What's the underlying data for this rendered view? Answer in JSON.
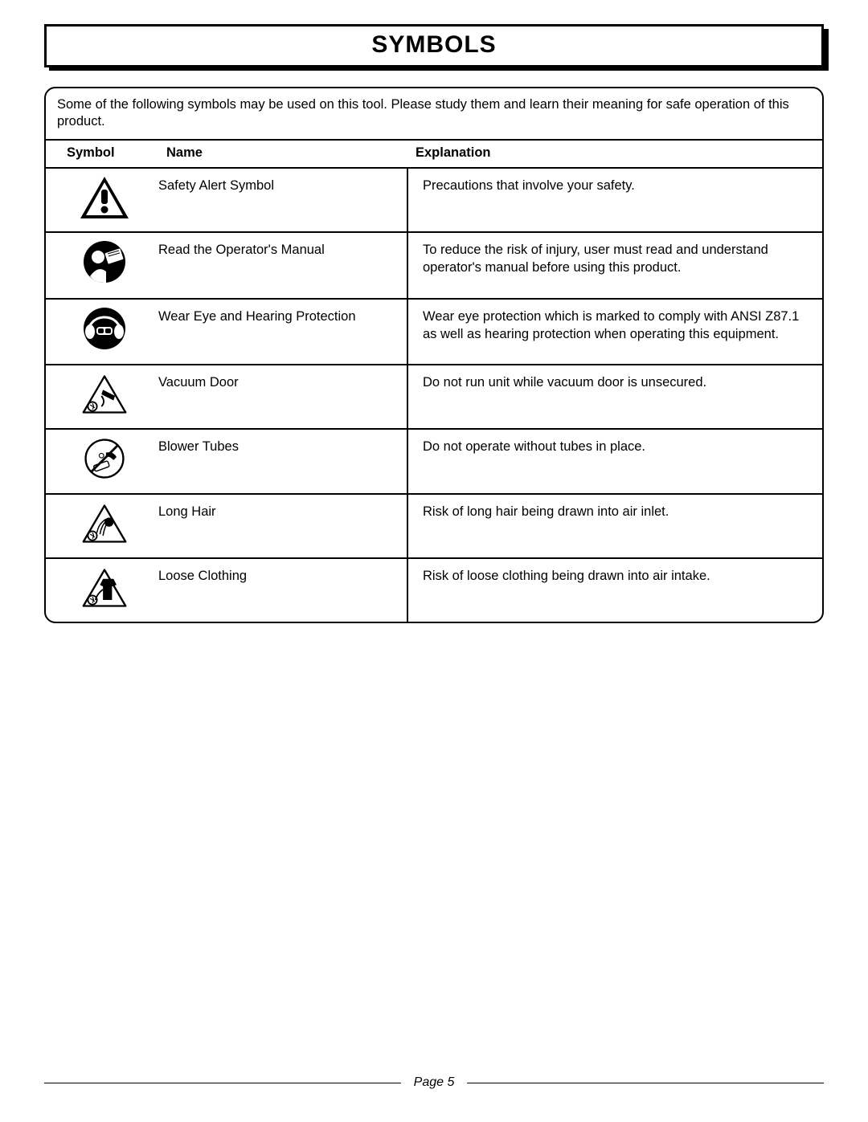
{
  "title": "SYMBOLS",
  "intro": "Some of the following symbols may be used on this tool. Please study them and learn their meaning for safe operation of this product.",
  "headers": {
    "symbol": "Symbol",
    "name": "Name",
    "explanation": "Explanation"
  },
  "rows": [
    {
      "icon": "safety-alert",
      "name": "Safety Alert Symbol",
      "explanation": "Precautions that involve your safety."
    },
    {
      "icon": "read-manual",
      "name": "Read the Operator's Manual",
      "explanation": "To reduce the risk of injury, user must read and understand operator's manual before using this product."
    },
    {
      "icon": "eye-ear-protection",
      "name": "Wear Eye and Hearing Protection",
      "explanation": "Wear eye protection which is marked to comply with ANSI Z87.1 as well as hearing protection when operating this equipment."
    },
    {
      "icon": "vacuum-door",
      "name": "Vacuum Door",
      "explanation": "Do not run unit while vacuum door is unsecured."
    },
    {
      "icon": "blower-tubes",
      "name": "Blower Tubes",
      "explanation": "Do not operate without tubes in place."
    },
    {
      "icon": "long-hair",
      "name": "Long Hair",
      "explanation": "Risk of long hair being drawn into air inlet."
    },
    {
      "icon": "loose-clothing",
      "name": "Loose Clothing",
      "explanation": "Risk of loose clothing being drawn into air intake."
    }
  ],
  "footer": "Page 5",
  "colors": {
    "text": "#000000",
    "background": "#ffffff",
    "border": "#000000"
  }
}
